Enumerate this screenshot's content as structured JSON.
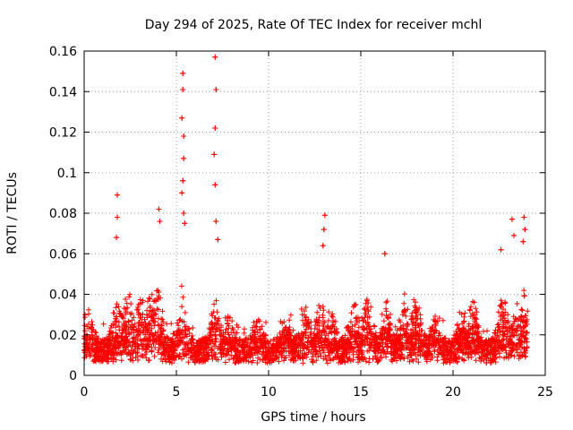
{
  "chart_data": {
    "type": "scatter",
    "title": "Day 294 of 2025, Rate Of TEC Index for receiver mchl",
    "xlabel": "GPS time / hours",
    "ylabel": "ROTI / TECUs",
    "xlim": [
      0,
      25
    ],
    "ylim": [
      0,
      0.16
    ],
    "xticks": [
      0,
      5,
      10,
      15,
      20,
      25
    ],
    "xtick_labels": [
      "0",
      "5",
      "10",
      "15",
      "20",
      "25"
    ],
    "yticks": [
      0,
      0.02,
      0.04,
      0.06,
      0.08,
      0.1,
      0.12,
      0.14,
      0.16
    ],
    "ytick_labels": [
      "0",
      "0.02",
      "0.04",
      "0.06",
      "0.08",
      "0.1",
      "0.12",
      "0.14",
      "0.16"
    ],
    "grid": true,
    "marker": "+",
    "color": "#ff0000",
    "series": [
      {
        "name": "ROTI",
        "x_range": [
          0,
          24.05
        ],
        "typical_range": [
          0.005,
          0.03
        ],
        "peaks": [
          {
            "x": 1.8,
            "y": 0.089
          },
          {
            "x": 1.8,
            "y": 0.078
          },
          {
            "x": 1.75,
            "y": 0.068
          },
          {
            "x": 4.05,
            "y": 0.082
          },
          {
            "x": 4.1,
            "y": 0.076
          },
          {
            "x": 5.35,
            "y": 0.149
          },
          {
            "x": 5.35,
            "y": 0.141
          },
          {
            "x": 5.3,
            "y": 0.127
          },
          {
            "x": 5.4,
            "y": 0.118
          },
          {
            "x": 5.4,
            "y": 0.107
          },
          {
            "x": 5.35,
            "y": 0.096
          },
          {
            "x": 5.3,
            "y": 0.09
          },
          {
            "x": 5.4,
            "y": 0.08
          },
          {
            "x": 5.45,
            "y": 0.075
          },
          {
            "x": 7.1,
            "y": 0.157
          },
          {
            "x": 7.15,
            "y": 0.141
          },
          {
            "x": 7.1,
            "y": 0.122
          },
          {
            "x": 7.05,
            "y": 0.109
          },
          {
            "x": 7.1,
            "y": 0.094
          },
          {
            "x": 7.15,
            "y": 0.076
          },
          {
            "x": 7.25,
            "y": 0.067
          },
          {
            "x": 13.05,
            "y": 0.079
          },
          {
            "x": 13.0,
            "y": 0.072
          },
          {
            "x": 12.95,
            "y": 0.064
          },
          {
            "x": 16.3,
            "y": 0.06
          },
          {
            "x": 22.6,
            "y": 0.062
          },
          {
            "x": 23.2,
            "y": 0.077
          },
          {
            "x": 23.85,
            "y": 0.078
          },
          {
            "x": 23.9,
            "y": 0.072
          },
          {
            "x": 23.8,
            "y": 0.066
          },
          {
            "x": 23.3,
            "y": 0.069
          }
        ]
      }
    ]
  }
}
